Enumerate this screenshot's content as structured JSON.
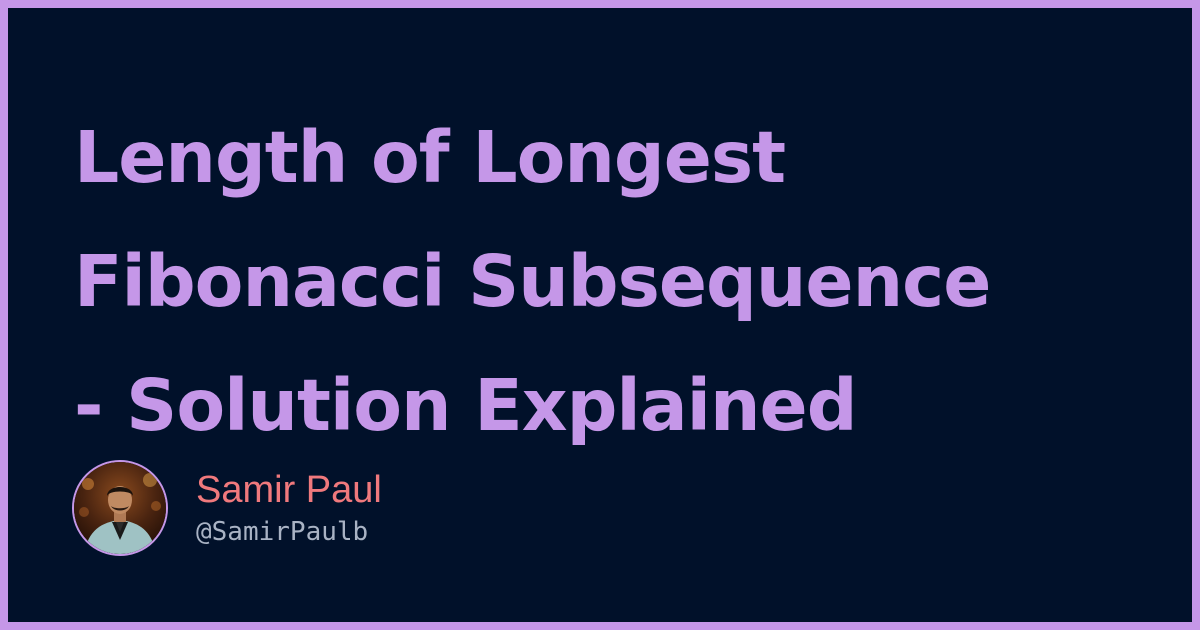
{
  "title": {
    "lines": [
      "Length of Longest",
      "Fibonacci Subsequence",
      "- Solution Explained"
    ]
  },
  "author": {
    "name": "Samir Paul",
    "handle": "@SamirPaulb",
    "avatar": "author-avatar-photo"
  },
  "colors": {
    "frame": "#c597e8",
    "background": "#01112a",
    "title": "#c597e8",
    "name": "#f0797d",
    "handle": "#a9b3c4"
  }
}
